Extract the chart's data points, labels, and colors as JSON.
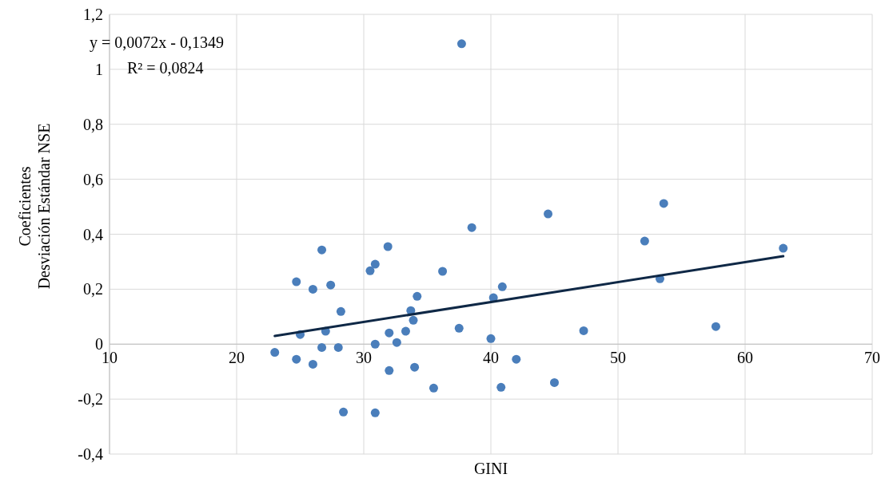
{
  "chart_data": {
    "type": "scatter",
    "xlabel": "GINI",
    "ylabel": "Coeficientes\nDesviación Estándar NSE",
    "xlim": [
      10,
      70
    ],
    "xticks": [
      10,
      20,
      30,
      40,
      50,
      60,
      70
    ],
    "ylim": [
      -0.4,
      1.2
    ],
    "yticks": [
      {
        "value": -0.4,
        "label": "-0,4"
      },
      {
        "value": -0.2,
        "label": "-0,2"
      },
      {
        "value": 0,
        "label": "0"
      },
      {
        "value": 0.2,
        "label": "0,2"
      },
      {
        "value": 0.4,
        "label": "0,4"
      },
      {
        "value": 0.6,
        "label": "0,6"
      },
      {
        "value": 0.8,
        "label": "0,8"
      },
      {
        "value": 1,
        "label": "1"
      },
      {
        "value": 1.2,
        "label": "1,2"
      }
    ],
    "grid": true,
    "marker": "circle",
    "annotations": [
      "y = 0,0072x - 0,1349",
      "R² = 0,0824"
    ],
    "series": [
      {
        "color": "#4a7ebb",
        "x": [
          23.0,
          24.7,
          24.7,
          25.0,
          26.0,
          26.0,
          26.7,
          26.7,
          27.0,
          27.4,
          28.0,
          28.2,
          28.4,
          30.5,
          30.9,
          30.9,
          30.9,
          31.9,
          32.0,
          32.0,
          32.6,
          33.3,
          33.7,
          33.9,
          34.0,
          34.2,
          35.5,
          36.2,
          37.5,
          37.7,
          38.5,
          40.0,
          40.2,
          40.9,
          40.8,
          42.0,
          44.5,
          45.0,
          47.3,
          52.1,
          53.3,
          53.6,
          57.7,
          63.0
        ],
        "values": [
          -0.03,
          -0.055,
          0.227,
          0.035,
          0.2,
          -0.073,
          0.343,
          -0.012,
          0.047,
          0.215,
          -0.012,
          0.119,
          -0.247,
          0.267,
          0.291,
          0.0,
          -0.25,
          0.355,
          0.041,
          -0.096,
          0.006,
          0.047,
          0.122,
          0.087,
          -0.084,
          0.174,
          -0.16,
          0.265,
          0.058,
          1.093,
          0.424,
          0.02,
          0.169,
          0.209,
          -0.157,
          -0.055,
          0.474,
          -0.14,
          0.049,
          0.375,
          0.238,
          0.512,
          0.064,
          0.349
        ]
      },
      {
        "type": "line",
        "marker": "none",
        "color": "#0f2846",
        "x": [
          23,
          63
        ],
        "values": [
          0.03,
          0.32
        ]
      }
    ]
  }
}
